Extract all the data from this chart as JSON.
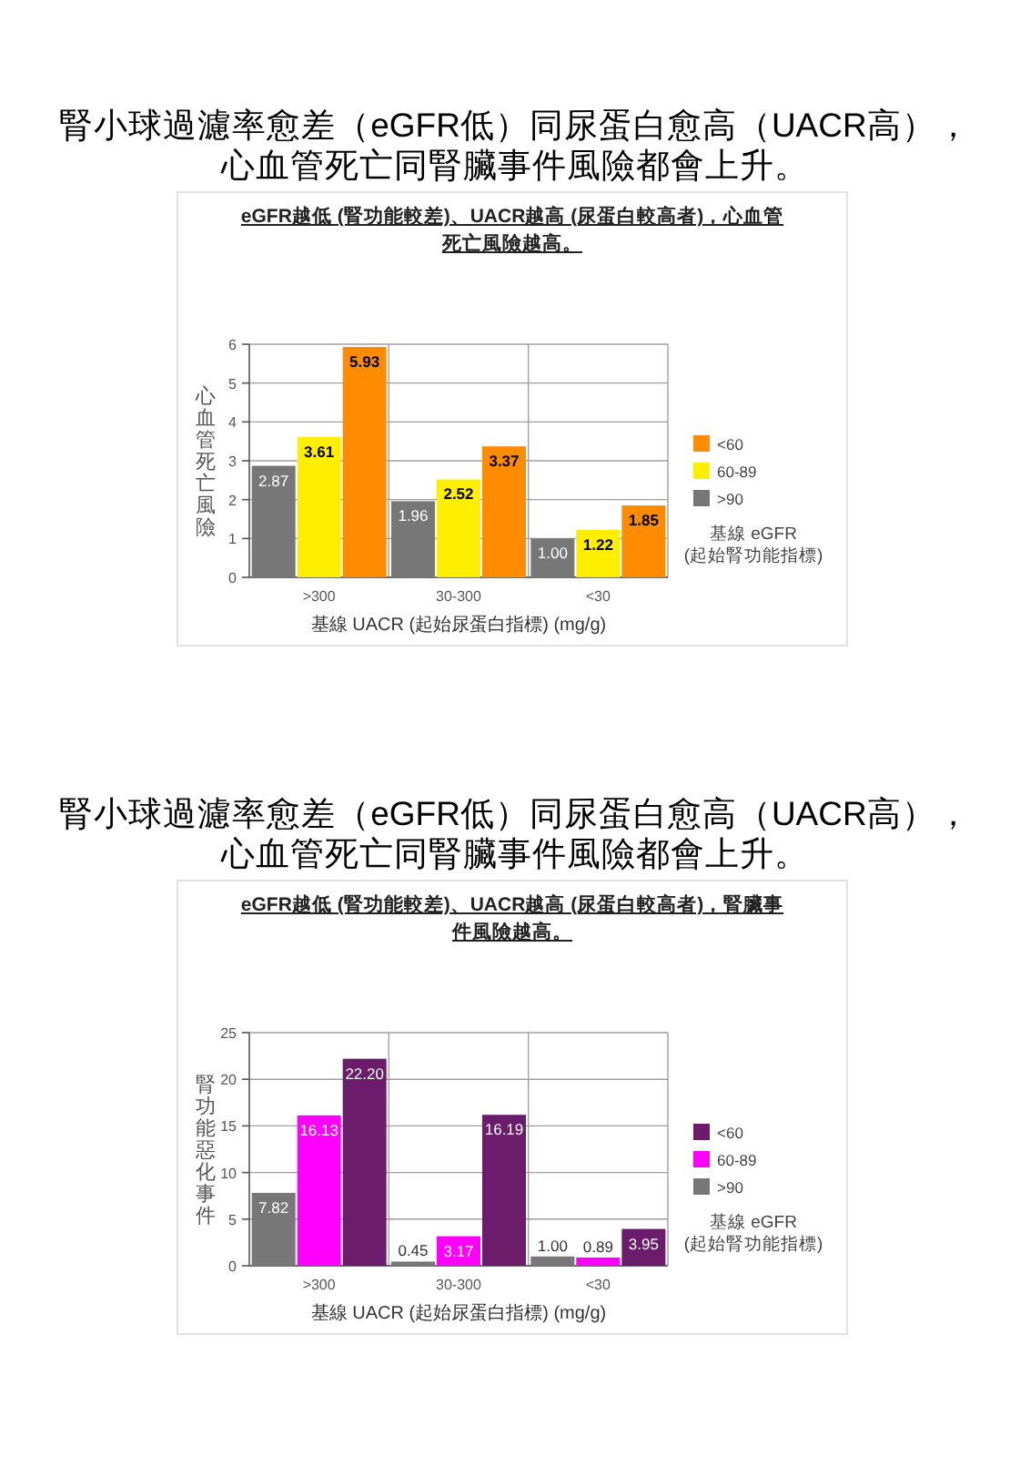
{
  "chart_data": [
    {
      "type": "bar",
      "title": "腎小球過濾率愈差（eGFR低）同尿蛋白愈高（UACR高），心血管死亡同腎臟事件風險都會上升。",
      "subtitle": "eGFR越低 (腎功能較差)、UACR越高 (尿蛋白較高者)，心血管死亡風險越高。",
      "xlabel": "基線 UACR (起始尿蛋白指標) (mg/g)",
      "ylabel": "心血管死亡風險",
      "legend_title": "基線 eGFR (起始腎功能指標)",
      "categories": [
        ">300",
        "30-300",
        "<30"
      ],
      "series": [
        {
          "name": ">90",
          "color": "#777777",
          "values": [
            2.87,
            1.96,
            1.0
          ],
          "value_labels": [
            "2.87",
            "1.96",
            "1.00"
          ]
        },
        {
          "name": "60-89",
          "color": "#ffee00",
          "values": [
            3.61,
            2.52,
            1.22
          ],
          "value_labels": [
            "3.61",
            "2.52",
            "1.22"
          ]
        },
        {
          "name": "<60",
          "color": "#ff8c00",
          "values": [
            5.93,
            3.37,
            1.85
          ],
          "value_labels": [
            "5.93",
            "3.37",
            "1.85"
          ]
        }
      ],
      "ylim": [
        0,
        6
      ],
      "yticks": [
        0,
        1,
        2,
        3,
        4,
        5,
        6
      ],
      "grid": true,
      "legend": "right"
    },
    {
      "type": "bar",
      "title": "腎小球過濾率愈差（eGFR低）同尿蛋白愈高（UACR高），心血管死亡同腎臟事件風險都會上升。",
      "subtitle": "eGFR越低 (腎功能較差)、UACR越高 (尿蛋白較高者)，腎臟事件風險越高。",
      "xlabel": "基線 UACR (起始尿蛋白指標) (mg/g)",
      "ylabel": "腎功能惡化事件",
      "legend_title": "基線 eGFR (起始腎功能指標)",
      "categories": [
        ">300",
        "30-300",
        "<30"
      ],
      "series": [
        {
          "name": ">90",
          "color": "#777777",
          "values": [
            7.82,
            0.45,
            1.0
          ],
          "value_labels": [
            "7.82",
            "0.45",
            "1.00"
          ]
        },
        {
          "name": "60-89",
          "color": "#ff00ff",
          "values": [
            16.13,
            3.17,
            0.89
          ],
          "value_labels": [
            "16.13",
            "3.17",
            "0.89"
          ]
        },
        {
          "name": "<60",
          "color": "#6b1d6b",
          "values": [
            22.2,
            16.19,
            3.95
          ],
          "value_labels": [
            "22.20",
            "16.19",
            "3.95"
          ]
        }
      ],
      "ylim": [
        0,
        25
      ],
      "yticks": [
        0,
        5,
        10,
        15,
        20,
        25
      ],
      "grid": true,
      "legend": "right"
    }
  ]
}
